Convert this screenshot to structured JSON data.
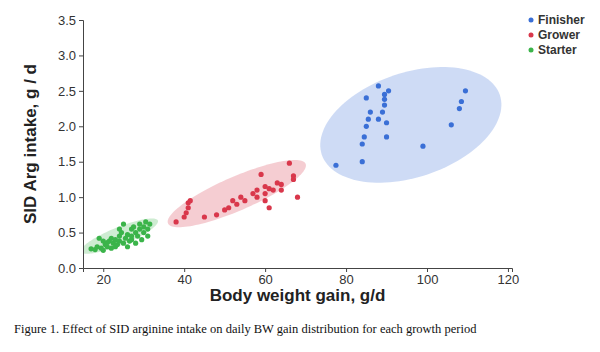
{
  "chart_data": {
    "type": "scatter",
    "x_label": "Body weight gain, g/d",
    "y_label": "SID Arg intake, g / d",
    "caption": "Figure 1. Effect of SID arginine intake on daily BW gain distribution for each growth period",
    "xlim": [
      15,
      121
    ],
    "xticks": [
      20,
      40,
      60,
      80,
      100,
      120
    ],
    "ylim": [
      0,
      3.5
    ],
    "yticks": [
      {
        "value": 0,
        "label": "0.0"
      },
      0.5,
      {
        "value": 1,
        "label": "1.0"
      },
      1.5,
      {
        "value": 2,
        "label": "2.0"
      },
      2.5,
      {
        "value": 3,
        "label": "3.0"
      },
      3.5
    ],
    "grid": false,
    "legend": "top-right",
    "series": [
      {
        "name": "Finisher",
        "color": "#3a6fd6",
        "marker": "circle",
        "x": [
          77.5,
          84,
          84,
          84.5,
          85,
          85.5,
          85,
          86,
          88,
          88,
          89,
          89.5,
          89.5,
          89.5,
          90,
          90,
          90.5,
          99,
          106,
          108,
          108.5,
          109.5
        ],
        "values": [
          1.45,
          1.5,
          1.75,
          1.85,
          2.0,
          2.1,
          2.4,
          2.2,
          2.57,
          2.1,
          2.2,
          2.3,
          2.38,
          2.45,
          2.05,
          1.85,
          2.5,
          1.72,
          2.02,
          2.25,
          2.35,
          2.5
        ],
        "ellipse": {
          "center": [
            96,
            2.02
          ],
          "major": [
            22,
            0.42
          ],
          "minor": [
            -4.1,
            0.7
          ]
        }
      },
      {
        "name": "Grower",
        "color": "#d9374b",
        "marker": "circle",
        "x": [
          38,
          40,
          40.5,
          41,
          41,
          41.5,
          45,
          48,
          50,
          51,
          52,
          53,
          54,
          55,
          57,
          58,
          58,
          59,
          60,
          60,
          61,
          61,
          62,
          63,
          64,
          64,
          66,
          67,
          67,
          68,
          60
        ],
        "values": [
          0.65,
          0.72,
          0.78,
          0.85,
          0.92,
          0.95,
          0.72,
          0.75,
          0.82,
          0.85,
          0.95,
          0.9,
          1.0,
          0.95,
          1.05,
          1.0,
          1.1,
          1.32,
          1.15,
          1.05,
          0.85,
          1.12,
          1.1,
          1.2,
          1.18,
          1.1,
          1.48,
          1.3,
          1.25,
          1.0,
          0.95
        ],
        "ellipse": {
          "center": [
            53,
            1.05
          ],
          "major": [
            17,
            0.42
          ],
          "minor": [
            -1.65,
            0.22
          ]
        }
      },
      {
        "name": "Starter",
        "color": "#3bb44a",
        "marker": "circle",
        "x": [
          17,
          18,
          18.5,
          19,
          19.5,
          20,
          20.5,
          21,
          21,
          21.5,
          22,
          22,
          22.5,
          23,
          23,
          23.5,
          24,
          24,
          24.5,
          25,
          25,
          25.5,
          26,
          26,
          26.5,
          27,
          27,
          27.5,
          28,
          28,
          28.5,
          29,
          29,
          29.5,
          30,
          30,
          30.5,
          31,
          31,
          31.5,
          27,
          20,
          24
        ],
        "values": [
          0.27,
          0.26,
          0.3,
          0.42,
          0.28,
          0.25,
          0.33,
          0.3,
          0.36,
          0.38,
          0.28,
          0.42,
          0.35,
          0.3,
          0.4,
          0.33,
          0.45,
          0.38,
          0.5,
          0.62,
          0.35,
          0.42,
          0.3,
          0.47,
          0.38,
          0.55,
          0.45,
          0.58,
          0.35,
          0.5,
          0.45,
          0.55,
          0.62,
          0.4,
          0.5,
          0.58,
          0.65,
          0.55,
          0.45,
          0.62,
          0.4,
          0.38,
          0.55
        ],
        "ellipse": {
          "center": [
            24,
            0.45
          ],
          "major": [
            9.5,
            0.22
          ],
          "minor": [
            -0.84,
            0.117
          ]
        }
      }
    ]
  }
}
